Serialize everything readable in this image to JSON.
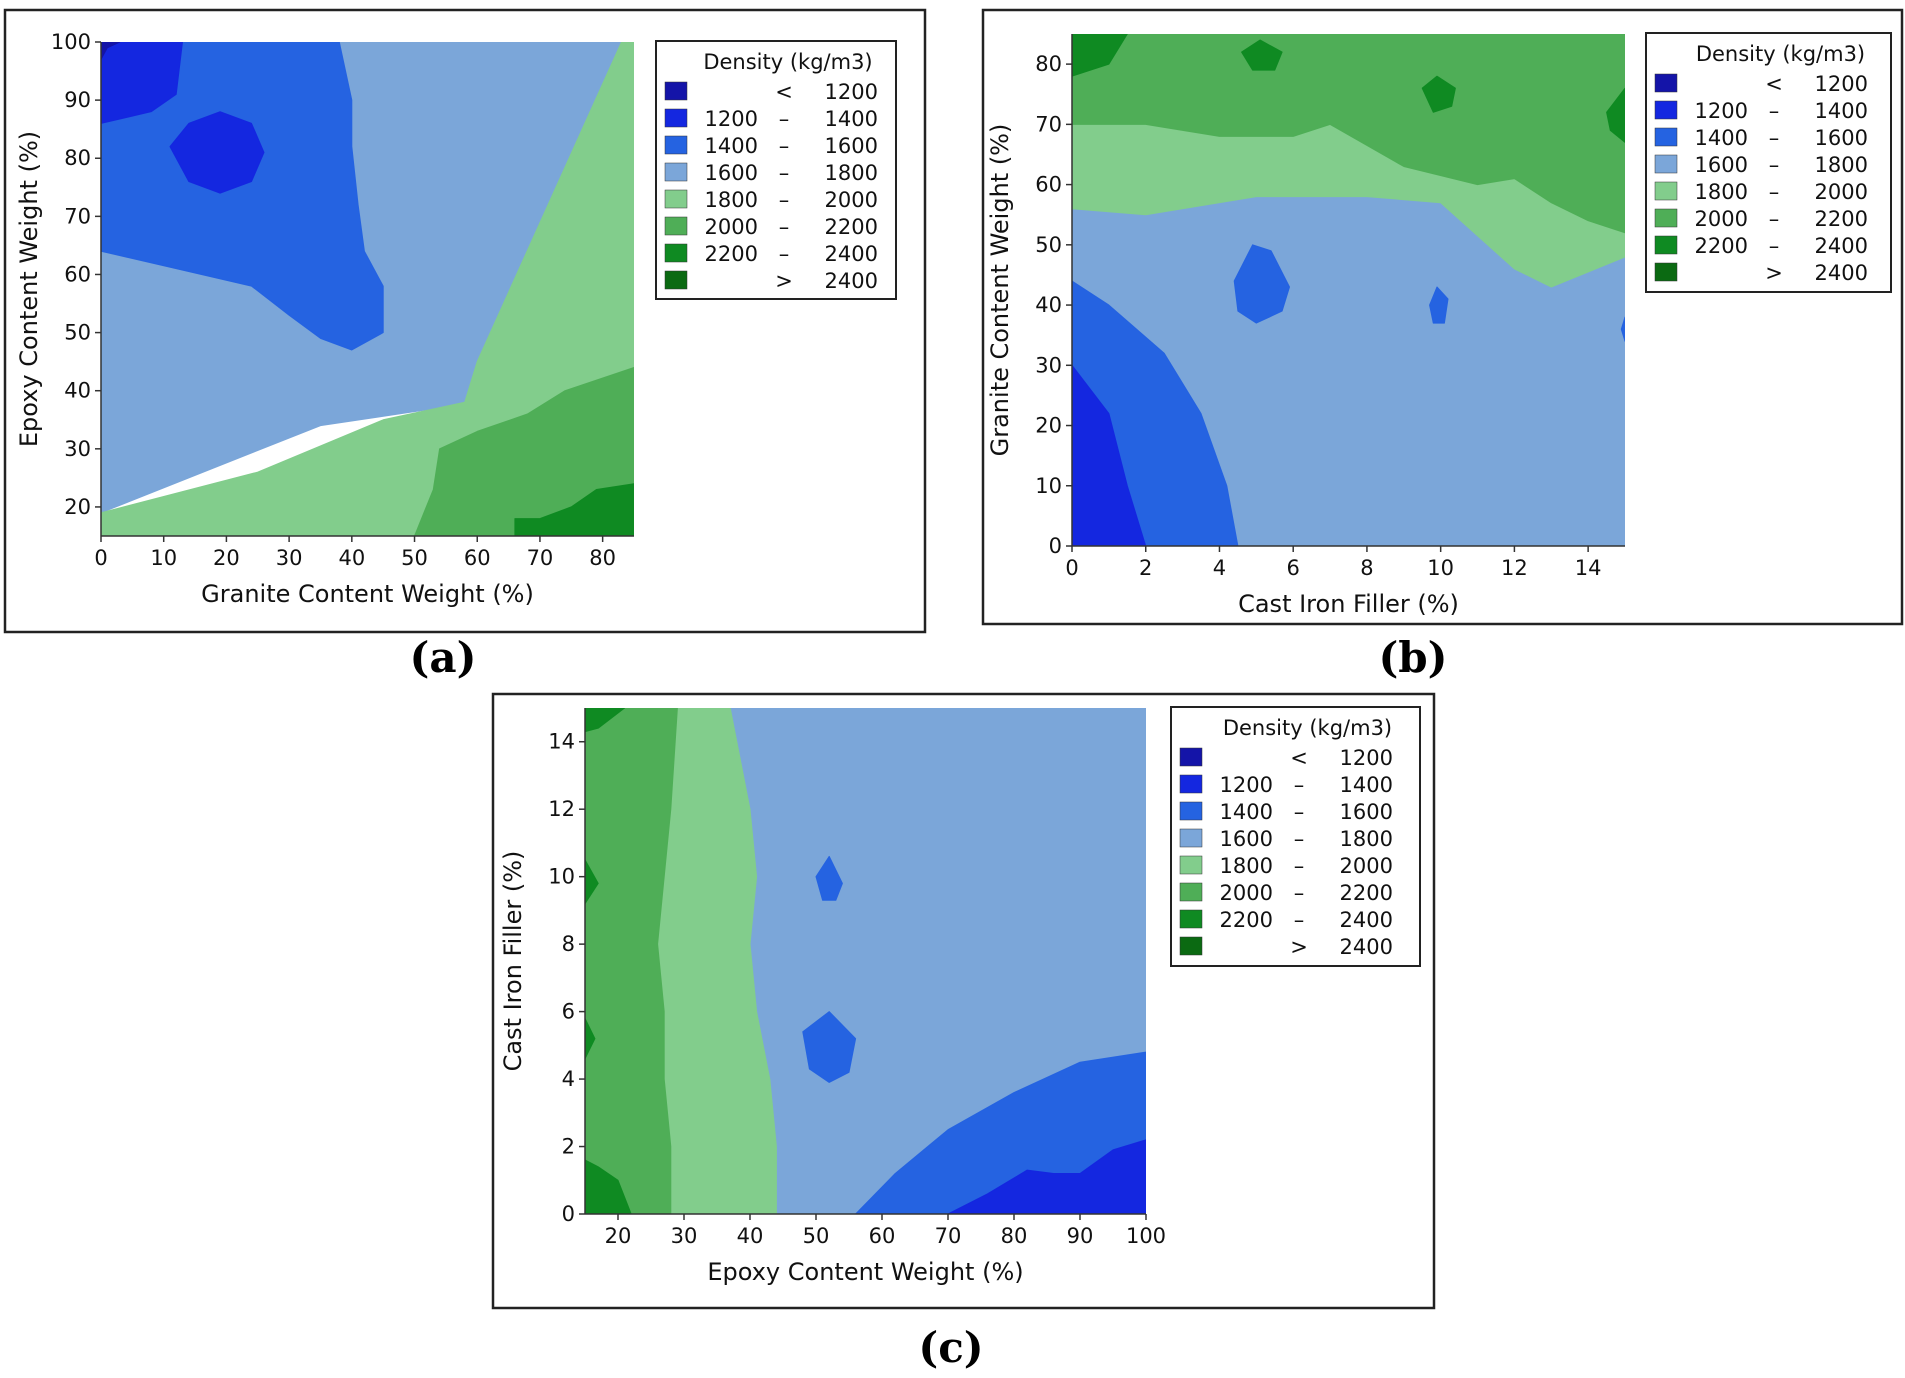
{
  "colors": {
    "lt1200": "#1414a8",
    "b1200_1400": "#1427e0",
    "b1400_1600": "#2563e1",
    "b1600_1800": "#7ba6d9",
    "b1800_2000": "#82cd8c",
    "b2000_2200": "#4fae57",
    "b2200_2400": "#0f8a22",
    "gt2400": "#0b6a12"
  },
  "legend": {
    "title": "Density (kg/m3)",
    "items": [
      {
        "lo": "",
        "sep": "<",
        "hi": "1200",
        "color": "#1414a8"
      },
      {
        "lo": "1200",
        "sep": "–",
        "hi": "1400",
        "color": "#1427e0"
      },
      {
        "lo": "1400",
        "sep": "–",
        "hi": "1600",
        "color": "#2563e1"
      },
      {
        "lo": "1600",
        "sep": "–",
        "hi": "1800",
        "color": "#7ba6d9"
      },
      {
        "lo": "1800",
        "sep": "–",
        "hi": "2000",
        "color": "#82cd8c"
      },
      {
        "lo": "2000",
        "sep": "–",
        "hi": "2200",
        "color": "#4fae57"
      },
      {
        "lo": "2200",
        "sep": "–",
        "hi": "2400",
        "color": "#0f8a22"
      },
      {
        "lo": "",
        "sep": ">",
        "hi": "2400",
        "color": "#0b6a12"
      }
    ]
  },
  "chart_data": [
    {
      "type": "contour",
      "caption": "(a)",
      "xlabel": "Granite Content Weight (%)",
      "ylabel": "Epoxy Content Weight (%)",
      "xlim": [
        0,
        85
      ],
      "ylim": [
        15,
        100
      ],
      "xticks": [
        0,
        10,
        20,
        30,
        40,
        50,
        60,
        70,
        80
      ],
      "yticks": [
        20,
        30,
        40,
        50,
        60,
        70,
        80,
        90,
        100
      ],
      "regions": [
        {
          "band": "1600-1800",
          "color": "#7ba6d9",
          "points": [
            [
              0,
              19
            ],
            [
              35,
              34
            ],
            [
              60,
              38
            ],
            [
              83,
              100
            ],
            [
              0,
              100
            ]
          ]
        },
        {
          "band": "1800-2000",
          "color": "#82cd8c",
          "points": [
            [
              0,
              15
            ],
            [
              85,
              15
            ],
            [
              85,
              100
            ],
            [
              83,
              100
            ],
            [
              60,
              45
            ],
            [
              58,
              38
            ],
            [
              45,
              35
            ],
            [
              25,
              26
            ],
            [
              0,
              19
            ]
          ]
        },
        {
          "band": "2000-2200",
          "color": "#4fae57",
          "points": [
            [
              50,
              15
            ],
            [
              85,
              15
            ],
            [
              85,
              44
            ],
            [
              74,
              40
            ],
            [
              68,
              36
            ],
            [
              60,
              33
            ],
            [
              54,
              30
            ],
            [
              53,
              23
            ]
          ]
        },
        {
          "band": "2200-2400",
          "color": "#0f8a22",
          "points": [
            [
              66,
              15
            ],
            [
              85,
              15
            ],
            [
              85,
              24
            ],
            [
              79,
              23
            ],
            [
              75,
              20
            ],
            [
              70,
              18
            ],
            [
              66,
              18
            ]
          ]
        },
        {
          "band": "1400-1600",
          "color": "#2563e1",
          "points": [
            [
              0,
              64
            ],
            [
              12,
              61
            ],
            [
              24,
              58
            ],
            [
              30,
              53
            ],
            [
              35,
              49
            ],
            [
              40,
              47
            ],
            [
              45,
              50
            ],
            [
              45,
              58
            ],
            [
              42,
              64
            ],
            [
              41,
              72
            ],
            [
              40,
              82
            ],
            [
              40,
              90
            ],
            [
              38,
              100
            ],
            [
              0,
              100
            ]
          ]
        },
        {
          "band": "1200-1400",
          "color": "#1427e0",
          "points": [
            [
              0,
              86
            ],
            [
              8,
              88
            ],
            [
              12,
              91
            ],
            [
              13,
              100
            ],
            [
              0,
              100
            ]
          ]
        },
        {
          "band": "1200-1400",
          "color": "#1427e0",
          "points": [
            [
              11,
              82
            ],
            [
              14,
              86
            ],
            [
              19,
              88
            ],
            [
              24,
              86
            ],
            [
              26,
              81
            ],
            [
              24,
              76
            ],
            [
              19,
              74
            ],
            [
              14,
              76
            ]
          ]
        },
        {
          "band": "<1200",
          "color": "#1414a8",
          "points": [
            [
              0,
              97
            ],
            [
              1,
              99
            ],
            [
              3,
              100
            ],
            [
              0,
              100
            ]
          ]
        }
      ]
    },
    {
      "type": "contour",
      "caption": "(b)",
      "xlabel": "Cast Iron Filler (%)",
      "ylabel": "Granite Content Weight (%)",
      "xlim": [
        0,
        15
      ],
      "ylim": [
        0,
        85
      ],
      "xticks": [
        0,
        2,
        4,
        6,
        8,
        10,
        12,
        14
      ],
      "yticks": [
        0,
        10,
        20,
        30,
        40,
        50,
        60,
        70,
        80
      ],
      "regions": [
        {
          "band": "1600-1800",
          "color": "#7ba6d9",
          "points": [
            [
              0,
              0
            ],
            [
              15,
              0
            ],
            [
              15,
              85
            ],
            [
              0,
              85
            ]
          ]
        },
        {
          "band": "1800-2000",
          "color": "#82cd8c",
          "points": [
            [
              0,
              56
            ],
            [
              2,
              55
            ],
            [
              5,
              58
            ],
            [
              8,
              58
            ],
            [
              10,
              57
            ],
            [
              12,
              46
            ],
            [
              13,
              43
            ],
            [
              15,
              48
            ],
            [
              15,
              85
            ],
            [
              0,
              85
            ]
          ]
        },
        {
          "band": "2000-2200",
          "color": "#4fae57",
          "points": [
            [
              0,
              70
            ],
            [
              2,
              70
            ],
            [
              4,
              68
            ],
            [
              6,
              68
            ],
            [
              7,
              70
            ],
            [
              9,
              63
            ],
            [
              11,
              60
            ],
            [
              12,
              61
            ],
            [
              13,
              57
            ],
            [
              14,
              54
            ],
            [
              15,
              52
            ],
            [
              15,
              85
            ],
            [
              0,
              85
            ]
          ]
        },
        {
          "band": "2200-2400",
          "color": "#0f8a22",
          "points": [
            [
              0,
              78
            ],
            [
              1,
              80
            ],
            [
              1.5,
              85
            ],
            [
              0,
              85
            ]
          ]
        },
        {
          "band": "2200-2400",
          "color": "#0f8a22",
          "points": [
            [
              4.6,
              82
            ],
            [
              5.1,
              84
            ],
            [
              5.7,
              82
            ],
            [
              5.5,
              79
            ],
            [
              4.9,
              79
            ]
          ]
        },
        {
          "band": "2200-2400",
          "color": "#0f8a22",
          "points": [
            [
              9.5,
              76
            ],
            [
              9.9,
              78
            ],
            [
              10.4,
              76
            ],
            [
              10.3,
              73
            ],
            [
              9.8,
              72
            ]
          ]
        },
        {
          "band": "2200-2400",
          "color": "#0f8a22",
          "points": [
            [
              15,
              76
            ],
            [
              14.5,
              72
            ],
            [
              14.6,
              69
            ],
            [
              15,
              67
            ]
          ]
        },
        {
          "band": "1400-1600",
          "color": "#2563e1",
          "points": [
            [
              0,
              44
            ],
            [
              1,
              40
            ],
            [
              2.5,
              32
            ],
            [
              3.5,
              22
            ],
            [
              4.2,
              10
            ],
            [
              4.5,
              0
            ],
            [
              0,
              0
            ]
          ]
        },
        {
          "band": "1400-1600",
          "color": "#2563e1",
          "points": [
            [
              4.4,
              44
            ],
            [
              4.9,
              50
            ],
            [
              5.4,
              49
            ],
            [
              5.9,
              43
            ],
            [
              5.7,
              39
            ],
            [
              5.0,
              37
            ],
            [
              4.5,
              39
            ]
          ]
        },
        {
          "band": "1400-1600",
          "color": "#2563e1",
          "points": [
            [
              9.7,
              40
            ],
            [
              9.9,
              43
            ],
            [
              10.2,
              41
            ],
            [
              10.1,
              37
            ],
            [
              9.8,
              37
            ]
          ]
        },
        {
          "band": "1400-1600",
          "color": "#2563e1",
          "points": [
            [
              15,
              38
            ],
            [
              14.9,
              36
            ],
            [
              15,
              34
            ]
          ]
        },
        {
          "band": "1200-1400",
          "color": "#1427e0",
          "points": [
            [
              0,
              30
            ],
            [
              1,
              22
            ],
            [
              1.5,
              10
            ],
            [
              2,
              0
            ],
            [
              0,
              0
            ]
          ]
        }
      ]
    },
    {
      "type": "contour",
      "caption": "(c)",
      "xlabel": "Epoxy Content Weight (%)",
      "ylabel": "Cast Iron Filler (%)",
      "xlim": [
        15,
        100
      ],
      "ylim": [
        0,
        15
      ],
      "xticks": [
        20,
        30,
        40,
        50,
        60,
        70,
        80,
        90,
        100
      ],
      "yticks": [
        0,
        2,
        4,
        6,
        8,
        10,
        12,
        14
      ],
      "regions": [
        {
          "band": "1600-1800",
          "color": "#7ba6d9",
          "points": [
            [
              15,
              0
            ],
            [
              100,
              0
            ],
            [
              100,
              15
            ],
            [
              15,
              15
            ]
          ]
        },
        {
          "band": "1800-2000",
          "color": "#82cd8c",
          "points": [
            [
              15,
              0
            ],
            [
              44,
              0
            ],
            [
              44,
              2
            ],
            [
              43,
              4
            ],
            [
              41,
              6
            ],
            [
              40,
              8
            ],
            [
              41,
              10
            ],
            [
              40,
              12
            ],
            [
              37,
              15
            ],
            [
              15,
              15
            ]
          ]
        },
        {
          "band": "2000-2200",
          "color": "#4fae57",
          "points": [
            [
              15,
              0
            ],
            [
              28,
              0
            ],
            [
              28,
              2
            ],
            [
              27,
              4
            ],
            [
              27,
              6
            ],
            [
              26,
              8
            ],
            [
              27,
              10
            ],
            [
              28,
              12
            ],
            [
              29,
              15
            ],
            [
              15,
              15
            ]
          ]
        },
        {
          "band": "2200-2400",
          "color": "#0f8a22",
          "points": [
            [
              15,
              0
            ],
            [
              22,
              0
            ],
            [
              20,
              1
            ],
            [
              17,
              1.4
            ],
            [
              15,
              1.6
            ]
          ]
        },
        {
          "band": "2200-2400",
          "color": "#0f8a22",
          "points": [
            [
              15,
              5.8
            ],
            [
              16.5,
              5.2
            ],
            [
              15,
              4.6
            ]
          ]
        },
        {
          "band": "2200-2400",
          "color": "#0f8a22",
          "points": [
            [
              15,
              10.5
            ],
            [
              17,
              9.8
            ],
            [
              15,
              9.2
            ]
          ]
        },
        {
          "band": "2200-2400",
          "color": "#0f8a22",
          "points": [
            [
              15,
              15
            ],
            [
              21,
              15
            ],
            [
              17,
              14.4
            ],
            [
              15,
              14.3
            ]
          ]
        },
        {
          "band": "1400-1600",
          "color": "#2563e1",
          "points": [
            [
              56,
              0
            ],
            [
              100,
              0
            ],
            [
              100,
              4.8
            ],
            [
              90,
              4.5
            ],
            [
              80,
              3.6
            ],
            [
              70,
              2.5
            ],
            [
              62,
              1.2
            ]
          ]
        },
        {
          "band": "1400-1600",
          "color": "#2563e1",
          "points": [
            [
              48,
              5.4
            ],
            [
              52,
              6.0
            ],
            [
              56,
              5.2
            ],
            [
              55,
              4.2
            ],
            [
              52,
              3.9
            ],
            [
              49,
              4.3
            ]
          ]
        },
        {
          "band": "1400-1600",
          "color": "#2563e1",
          "points": [
            [
              50,
              10.0
            ],
            [
              52,
              10.6
            ],
            [
              54,
              9.8
            ],
            [
              53,
              9.3
            ],
            [
              51,
              9.3
            ]
          ]
        },
        {
          "band": "1200-1400",
          "color": "#1427e0",
          "points": [
            [
              70,
              0
            ],
            [
              100,
              0
            ],
            [
              100,
              2.2
            ],
            [
              95,
              1.9
            ],
            [
              90,
              1.2
            ],
            [
              86,
              1.2
            ],
            [
              82,
              1.3
            ],
            [
              76,
              0.6
            ]
          ]
        }
      ]
    }
  ]
}
